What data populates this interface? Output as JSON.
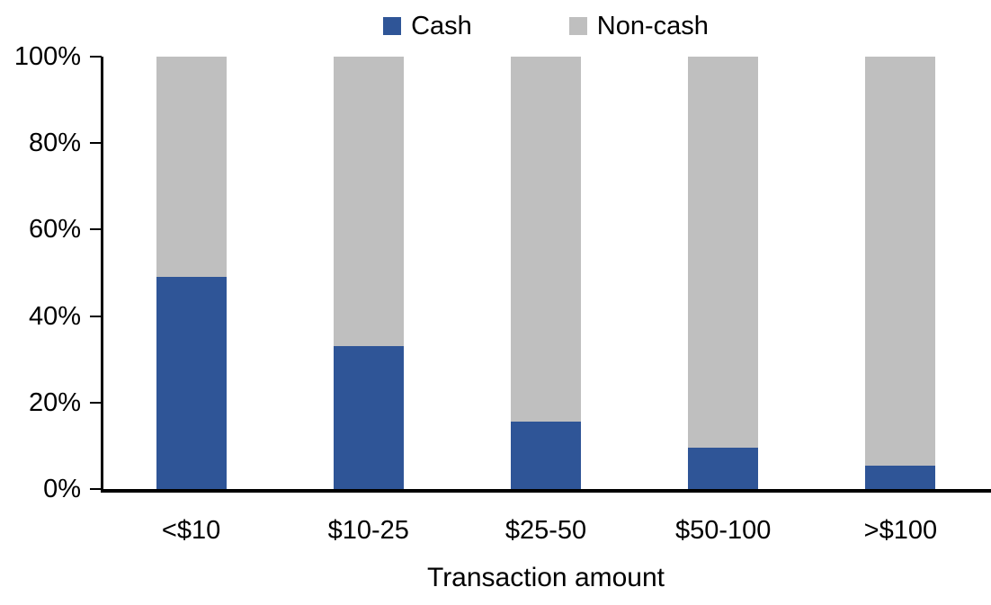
{
  "chart_data": {
    "type": "bar",
    "subtype": "stacked-100-percent",
    "categories": [
      "<$10",
      "$10-25",
      "$25-50",
      "$50-100",
      ">$100"
    ],
    "series": [
      {
        "name": "Cash",
        "color": "#2F5597",
        "values": [
          49,
          33,
          15.5,
          9.5,
          5.5
        ]
      },
      {
        "name": "Non-cash",
        "color": "#BFBFBF",
        "values": [
          51,
          67,
          84.5,
          90.5,
          94.5
        ]
      }
    ],
    "title": "",
    "xlabel": "Transaction amount",
    "ylabel": "",
    "ylim": [
      0,
      100
    ],
    "ytick_values": [
      0,
      20,
      40,
      60,
      80,
      100
    ],
    "ytick_labels": [
      "0%",
      "20%",
      "40%",
      "60%",
      "80%",
      "100%"
    ],
    "legend_position": "top-center",
    "grid": false,
    "axis_color": "#000000",
    "background_color": "#FFFFFF"
  }
}
